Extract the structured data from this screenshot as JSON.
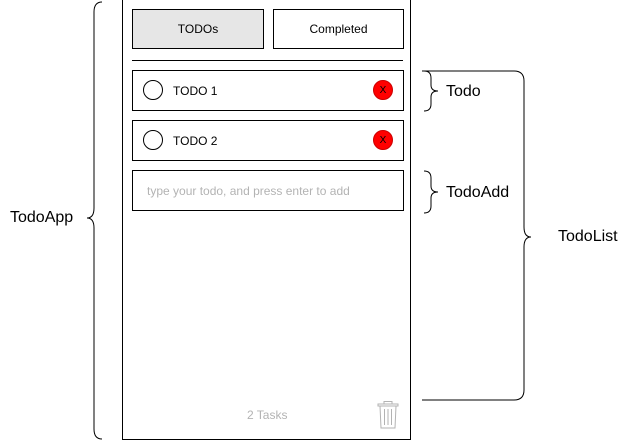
{
  "tabs": {
    "todos_label": "TODOs",
    "completed_label": "Completed"
  },
  "todos": [
    {
      "label": "TODO 1",
      "delete_label": "X"
    },
    {
      "label": "TODO 2",
      "delete_label": "X"
    }
  ],
  "add": {
    "placeholder": "type your todo, and press enter to add"
  },
  "footer": {
    "task_count": "2 Tasks",
    "trash_icon": "trash-icon"
  },
  "annotations": {
    "todo_app": "TodoApp",
    "todo": "Todo",
    "todo_add": "TodoAdd",
    "todo_list": "TodoList"
  },
  "colors": {
    "active_tab": "#e6e6e6",
    "delete": "#ff0000",
    "muted_text": "#b3b3b3"
  }
}
